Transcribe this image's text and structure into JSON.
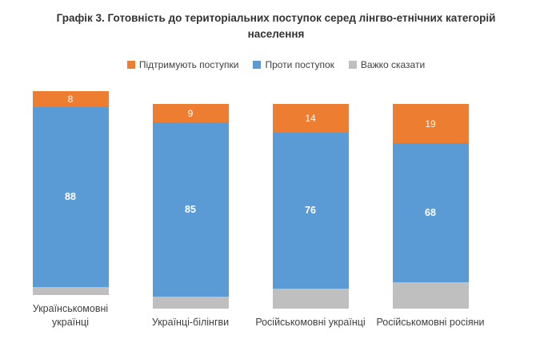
{
  "title": "Графік 3. Готовність до територіальних поступок серед лінгво-етнічних категорій населення",
  "colors": {
    "support": "#ED7D31",
    "against": "#5B9BD5",
    "undecided": "#BFBFBF",
    "value_label": "#FFFFFF",
    "text": "#404040"
  },
  "legend": [
    {
      "label": "Підтримують поступки",
      "color": "#ED7D31"
    },
    {
      "label": "Проти поступок",
      "color": "#5B9BD5"
    },
    {
      "label": "Важко сказати",
      "color": "#BFBFBF"
    }
  ],
  "chart_data": {
    "type": "bar",
    "stacked": true,
    "title": "Графік 3. Готовність до територіальних поступок серед лінгво-етнічних категорій населення",
    "categories": [
      "Українськомовні українці",
      "Українці-білінгви",
      "Російськомовні українці",
      "Російськомовні росіяни"
    ],
    "series": [
      {
        "name": "Підтримують поступки",
        "key": "support",
        "color": "#ED7D31",
        "values": [
          8,
          9,
          14,
          19
        ],
        "labels_visible": true,
        "labels_bold": false
      },
      {
        "name": "Проти поступок",
        "key": "against",
        "color": "#5B9BD5",
        "values": [
          88,
          85,
          76,
          68
        ],
        "labels_visible": true,
        "labels_bold": true
      },
      {
        "name": "Важко сказати",
        "key": "undecided",
        "color": "#BFBFBF",
        "values": [
          4,
          6,
          10,
          13
        ],
        "labels_visible": false,
        "labels_bold": false
      }
    ],
    "ylim": [
      0,
      100
    ],
    "grid": false,
    "axes_visible": false,
    "legend_position": "top"
  }
}
